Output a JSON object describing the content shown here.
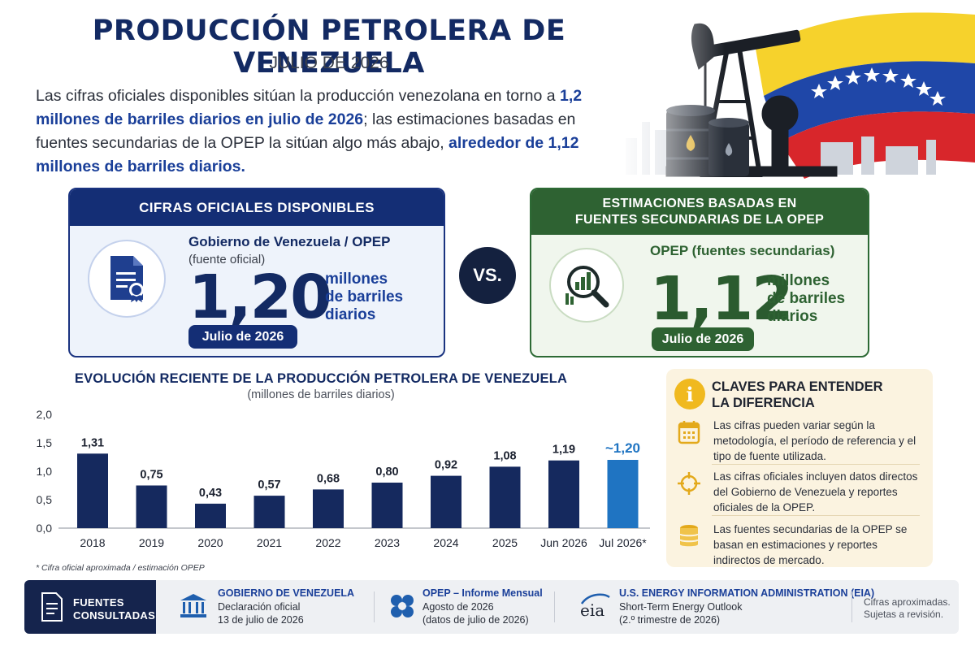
{
  "header": {
    "title": "PRODUCCIÓN PETROLERA DE VENEZUELA",
    "subtitle": "JULIO DE 2026"
  },
  "intro": {
    "part1": "Las cifras oficiales disponibles sitúan la producción venezolana en torno a ",
    "highlight1": "1,2 millones de barriles diarios en julio de 2026",
    "part2": "; las estimaciones basadas en fuentes secundarias de la OPEP la sitúan algo más abajo, ",
    "highlight2": "alrededor de 1,12 millones de barriles diarios."
  },
  "official_card": {
    "heading": "CIFRAS OFICIALES DISPONIBLES",
    "source": "Gobierno de Venezuela / OPEP",
    "note": "(fuente oficial)",
    "value": "1,20",
    "unit_line1": "millones",
    "unit_line2": "de barriles",
    "unit_line3": "diarios",
    "date": "Julio de 2026",
    "icon": "certified-document-icon",
    "color": "#142e75"
  },
  "versus": "VS.",
  "opec_card": {
    "heading_line1": "ESTIMACIONES BASADAS EN",
    "heading_line2": "FUENTES SECUNDARIAS DE LA OPEP",
    "source": "OPEP (fuentes secundarias)",
    "value": "1,12",
    "unit_line1": "millones",
    "unit_line2": "de barriles",
    "unit_line3": "diarios",
    "date": "Julio de 2026",
    "icon": "magnifier-chart-icon",
    "color": "#2e6232"
  },
  "chart_data": {
    "type": "bar",
    "title": "EVOLUCIÓN RECIENTE DE LA PRODUCCIÓN PETROLERA DE VENEZUELA",
    "subtitle": "(millones de barriles diarios)",
    "categories": [
      "2018",
      "2019",
      "2020",
      "2021",
      "2022",
      "2023",
      "2024",
      "2025",
      "Jun 2026",
      "Jul 2026*"
    ],
    "values": [
      1.31,
      0.75,
      0.43,
      0.57,
      0.68,
      0.8,
      0.92,
      1.08,
      1.19,
      1.2
    ],
    "value_labels": [
      "1,31",
      "0,75",
      "0,43",
      "0,57",
      "0,68",
      "0,80",
      "0,92",
      "1,08",
      "1,19",
      "~1,20"
    ],
    "y_ticks": [
      "0,0",
      "0,5",
      "1,0",
      "1,5",
      "2,0"
    ],
    "ylim": [
      0,
      2.0
    ],
    "highlight_index": 9,
    "bar_color": "#15295e",
    "highlight_color": "#1f74c2",
    "grid": false,
    "xlabel": "",
    "ylabel": "",
    "footnote": "* Cifra oficial aproximada / estimación OPEP"
  },
  "keys": {
    "title_line1": "CLAVES PARA ENTENDER",
    "title_line2": "LA DIFERENCIA",
    "info_glyph": "i",
    "items": [
      {
        "icon": "calendar-icon",
        "text": "Las cifras pueden variar según la metodología, el período de referencia y el tipo de fuente utilizada."
      },
      {
        "icon": "crosshair-icon",
        "text": "Las cifras oficiales incluyen datos directos del Gobierno de Venezuela y reportes oficiales de la OPEP."
      },
      {
        "icon": "database-icon",
        "text": "Las fuentes secundarias de la OPEP se basan en estimaciones y reportes indirectos de mercado."
      }
    ]
  },
  "sources": {
    "label_line1": "FUENTES",
    "label_line2": "CONSULTADAS",
    "items": [
      {
        "icon": "government-building-icon",
        "title": "GOBIERNO DE VENEZUELA",
        "line1": "Declaración oficial",
        "line2": "13 de julio de 2026"
      },
      {
        "icon": "opec-logo-icon",
        "title": "OPEP – Informe Mensual",
        "line1": "Agosto de 2026",
        "line2": "(datos de julio de 2026)"
      },
      {
        "icon": "eia-logo-icon",
        "logo_text": "eia",
        "title": "U.S. ENERGY INFORMATION ADMINISTRATION (EIA)",
        "line1": "Short-Term Energy Outlook",
        "line2": "(2.º trimestre de 2026)"
      }
    ],
    "disclaimer_line1": "Cifras aproximadas.",
    "disclaimer_line2": "Sujetas a revisión."
  }
}
